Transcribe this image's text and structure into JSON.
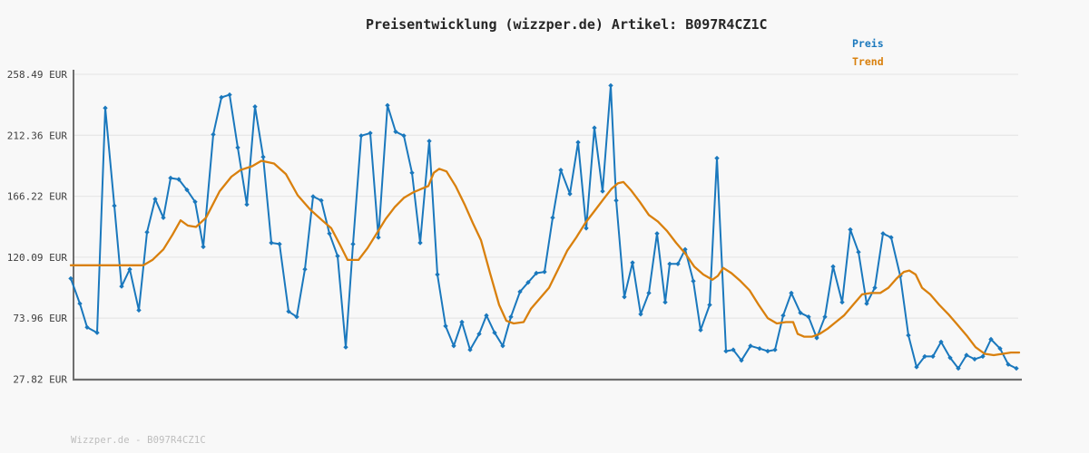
{
  "title": "Preisentwicklung (wizzper.de) Artikel: B097R4CZ1C",
  "legend": {
    "price_label": "Preis",
    "trend_label": "Trend"
  },
  "footer": "Wizzper.de - B097R4CZ1C",
  "colors": {
    "price": "#1a78bd",
    "trend": "#d9800d",
    "axis": "#6f6f6f",
    "grid": "#e8e8e8",
    "tick_text": "#3d3d3d",
    "title_text": "#262626",
    "footer_text": "#bdbdbd",
    "background": "#f8f8f8"
  },
  "chart_data": {
    "type": "line",
    "title": "Preisentwicklung (wizzper.de) Artikel: B097R4CZ1C",
    "xlabel": "",
    "ylabel": "",
    "ylim": [
      27.82,
      258.49
    ],
    "grid": "horizontal",
    "legend_position": "top-right-outside",
    "x_ticks": [],
    "y_ticks": [
      {
        "value": 258.49,
        "label": "258.49 EUR"
      },
      {
        "value": 212.36,
        "label": "212.36 EUR"
      },
      {
        "value": 166.22,
        "label": "166.22 EUR"
      },
      {
        "value": 120.09,
        "label": "120.09 EUR"
      },
      {
        "value": 73.96,
        "label": "73.96 EUR"
      },
      {
        "value": 27.82,
        "label": "27.82 EUR"
      }
    ],
    "y_unit": "EUR",
    "series": [
      {
        "name": "Preis",
        "color": "#1a78bd",
        "markers": true,
        "points": [
          [
            78,
            104
          ],
          [
            88,
            85
          ],
          [
            96,
            67
          ],
          [
            107,
            63
          ],
          [
            116,
            233
          ],
          [
            126,
            159
          ],
          [
            134,
            98
          ],
          [
            143,
            111
          ],
          [
            153,
            80
          ],
          [
            162,
            139
          ],
          [
            171,
            164
          ],
          [
            180,
            150
          ],
          [
            188,
            180
          ],
          [
            197,
            179
          ],
          [
            206,
            171
          ],
          [
            215,
            162
          ],
          [
            224,
            128
          ],
          [
            235,
            213
          ],
          [
            244,
            241
          ],
          [
            253,
            243
          ],
          [
            262,
            203
          ],
          [
            272,
            160
          ],
          [
            281,
            234
          ],
          [
            290,
            196
          ],
          [
            299,
            131
          ],
          [
            308,
            130
          ],
          [
            318,
            79
          ],
          [
            327,
            75
          ],
          [
            336,
            111
          ],
          [
            345,
            166
          ],
          [
            354,
            163
          ],
          [
            363,
            138
          ],
          [
            372,
            121
          ],
          [
            381,
            52
          ],
          [
            389,
            130
          ],
          [
            398,
            212
          ],
          [
            408,
            214
          ],
          [
            417,
            135
          ],
          [
            427,
            235
          ],
          [
            436,
            215
          ],
          [
            445,
            212
          ],
          [
            454,
            184
          ],
          [
            463,
            131
          ],
          [
            473,
            208
          ],
          [
            482,
            107
          ],
          [
            491,
            68
          ],
          [
            500,
            53
          ],
          [
            509,
            71
          ],
          [
            518,
            50
          ],
          [
            528,
            62
          ],
          [
            536,
            76
          ],
          [
            545,
            63
          ],
          [
            554,
            53
          ],
          [
            563,
            75
          ],
          [
            573,
            94
          ],
          [
            582,
            101
          ],
          [
            591,
            108
          ],
          [
            600,
            109
          ],
          [
            609,
            150
          ],
          [
            618,
            186
          ],
          [
            628,
            168
          ],
          [
            637,
            207
          ],
          [
            646,
            142
          ],
          [
            655,
            218
          ],
          [
            664,
            170
          ],
          [
            673,
            250
          ],
          [
            679,
            163
          ],
          [
            688,
            90
          ],
          [
            697,
            116
          ],
          [
            706,
            77
          ],
          [
            715,
            93
          ],
          [
            724,
            138
          ],
          [
            733,
            86
          ],
          [
            738,
            115
          ],
          [
            747,
            115
          ],
          [
            755,
            126
          ],
          [
            764,
            102
          ],
          [
            772,
            65
          ],
          [
            782,
            84
          ],
          [
            790,
            195
          ],
          [
            800,
            49
          ],
          [
            808,
            50
          ],
          [
            817,
            42
          ],
          [
            827,
            53
          ],
          [
            837,
            51
          ],
          [
            846,
            49
          ],
          [
            854,
            50
          ],
          [
            863,
            76
          ],
          [
            872,
            93
          ],
          [
            882,
            78
          ],
          [
            891,
            75
          ],
          [
            900,
            59
          ],
          [
            909,
            75
          ],
          [
            918,
            113
          ],
          [
            928,
            86
          ],
          [
            937,
            141
          ],
          [
            946,
            124
          ],
          [
            955,
            85
          ],
          [
            964,
            97
          ],
          [
            973,
            138
          ],
          [
            982,
            135
          ],
          [
            992,
            106
          ],
          [
            1001,
            61
          ],
          [
            1010,
            37
          ],
          [
            1019,
            45
          ],
          [
            1028,
            45
          ],
          [
            1037,
            56
          ],
          [
            1047,
            44
          ],
          [
            1056,
            36
          ],
          [
            1065,
            46
          ],
          [
            1074,
            43
          ],
          [
            1083,
            45
          ],
          [
            1092,
            58
          ],
          [
            1102,
            51
          ],
          [
            1111,
            39
          ],
          [
            1120,
            36
          ]
        ]
      },
      {
        "name": "Trend",
        "color": "#d9800d",
        "markers": false,
        "points": [
          [
            78,
            114
          ],
          [
            100,
            114
          ],
          [
            120,
            114
          ],
          [
            140,
            114
          ],
          [
            158,
            114
          ],
          [
            168,
            118
          ],
          [
            180,
            126
          ],
          [
            190,
            137
          ],
          [
            199,
            148
          ],
          [
            207,
            144
          ],
          [
            216,
            143
          ],
          [
            227,
            150
          ],
          [
            242,
            170
          ],
          [
            255,
            181
          ],
          [
            265,
            186
          ],
          [
            278,
            189
          ],
          [
            288,
            193
          ],
          [
            302,
            191
          ],
          [
            315,
            183
          ],
          [
            328,
            167
          ],
          [
            342,
            156
          ],
          [
            355,
            148
          ],
          [
            365,
            142
          ],
          [
            375,
            129
          ],
          [
            383,
            118
          ],
          [
            395,
            118
          ],
          [
            405,
            127
          ],
          [
            415,
            138
          ],
          [
            425,
            149
          ],
          [
            435,
            158
          ],
          [
            445,
            165
          ],
          [
            455,
            169
          ],
          [
            465,
            172
          ],
          [
            472,
            174
          ],
          [
            478,
            184
          ],
          [
            484,
            187
          ],
          [
            492,
            185
          ],
          [
            502,
            174
          ],
          [
            512,
            160
          ],
          [
            521,
            146
          ],
          [
            530,
            133
          ],
          [
            540,
            108
          ],
          [
            550,
            84
          ],
          [
            558,
            72
          ],
          [
            566,
            70
          ],
          [
            577,
            71
          ],
          [
            585,
            81
          ],
          [
            595,
            89
          ],
          [
            605,
            97
          ],
          [
            615,
            111
          ],
          [
            625,
            125
          ],
          [
            635,
            135
          ],
          [
            645,
            146
          ],
          [
            655,
            155
          ],
          [
            665,
            164
          ],
          [
            674,
            172
          ],
          [
            681,
            176
          ],
          [
            687,
            177
          ],
          [
            695,
            171
          ],
          [
            705,
            162
          ],
          [
            715,
            152
          ],
          [
            725,
            147
          ],
          [
            735,
            140
          ],
          [
            745,
            131
          ],
          [
            755,
            123
          ],
          [
            765,
            113
          ],
          [
            775,
            107
          ],
          [
            785,
            103
          ],
          [
            791,
            106
          ],
          [
            797,
            112
          ],
          [
            806,
            108
          ],
          [
            816,
            102
          ],
          [
            826,
            95
          ],
          [
            836,
            84
          ],
          [
            846,
            74
          ],
          [
            856,
            70
          ],
          [
            866,
            71
          ],
          [
            874,
            71
          ],
          [
            879,
            62
          ],
          [
            886,
            60
          ],
          [
            895,
            60
          ],
          [
            903,
            62
          ],
          [
            912,
            66
          ],
          [
            921,
            71
          ],
          [
            930,
            76
          ],
          [
            940,
            84
          ],
          [
            950,
            92
          ],
          [
            960,
            93
          ],
          [
            970,
            93
          ],
          [
            979,
            97
          ],
          [
            988,
            104
          ],
          [
            996,
            109
          ],
          [
            1002,
            110
          ],
          [
            1009,
            107
          ],
          [
            1016,
            97
          ],
          [
            1025,
            92
          ],
          [
            1035,
            84
          ],
          [
            1045,
            77
          ],
          [
            1055,
            69
          ],
          [
            1065,
            61
          ],
          [
            1075,
            52
          ],
          [
            1085,
            47
          ],
          [
            1095,
            46
          ],
          [
            1105,
            47
          ],
          [
            1114,
            48
          ],
          [
            1123,
            48
          ]
        ]
      }
    ]
  }
}
